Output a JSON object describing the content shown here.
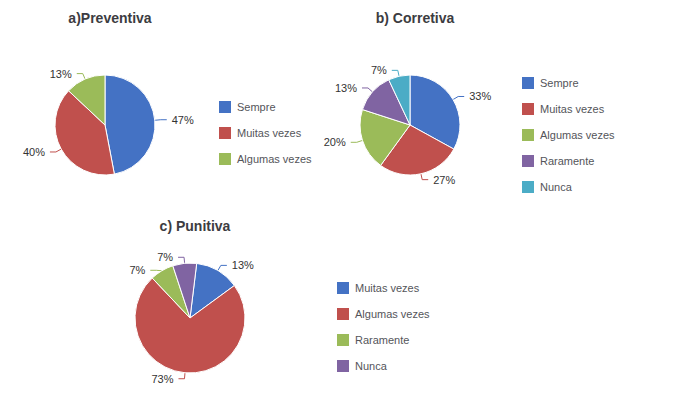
{
  "chart_data": [
    {
      "type": "pie",
      "title": "a)Preventiva",
      "categories": [
        "Sempre",
        "Muitas vezes",
        "Algumas vezes"
      ],
      "values": [
        47,
        40,
        13
      ],
      "value_labels": [
        "47%",
        "40%",
        "13%"
      ],
      "colors": [
        "#4472C4",
        "#C0504D",
        "#9BBB59"
      ],
      "data_labels": true,
      "legend": "right"
    },
    {
      "type": "pie",
      "title": "b) Corretiva",
      "categories": [
        "Sempre",
        "Muitas vezes",
        "Algumas vezes",
        "Raramente",
        "Nunca"
      ],
      "values": [
        33,
        27,
        20,
        13,
        7
      ],
      "value_labels": [
        "33%",
        "27%",
        "20%",
        "13%",
        "7%"
      ],
      "colors": [
        "#4472C4",
        "#C0504D",
        "#9BBB59",
        "#8064A2",
        "#4BACC6"
      ],
      "data_labels": true,
      "legend": "right"
    },
    {
      "type": "pie",
      "title": "c) Punitiva",
      "categories": [
        "Muitas vezes",
        "Algumas vezes",
        "Raramente",
        "Nunca"
      ],
      "values": [
        13,
        73,
        7,
        7
      ],
      "value_labels": [
        "13%",
        "73%",
        "7%",
        "7%"
      ],
      "colors": [
        "#4472C4",
        "#C0504D",
        "#9BBB59",
        "#8064A2"
      ],
      "data_labels": true,
      "legend": "right"
    }
  ]
}
